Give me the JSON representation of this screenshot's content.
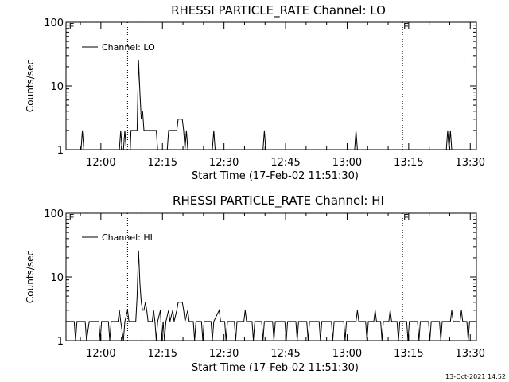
{
  "footer_timestamp": "13-Oct-2021 14:52",
  "chart_data": [
    {
      "type": "line",
      "title": "RHESSI PARTICLE_RATE Channel: LO",
      "xlabel": "Start Time (17-Feb-02 11:51:30)",
      "ylabel": "Counts/sec",
      "x_ticks": [
        "12:00",
        "12:15",
        "12:30",
        "12:45",
        "13:00",
        "13:15",
        "13:30"
      ],
      "y_ticks": [
        "1",
        "10",
        "100"
      ],
      "y_scale": "log",
      "ylim": [
        1,
        100
      ],
      "xlim": [
        "11:51:30",
        "13:31:30"
      ],
      "grid": false,
      "legend_position": "top-left",
      "legend_label": "Channel: LO",
      "vlines": [
        "12:06:30",
        "13:13:30",
        "13:28:30"
      ],
      "e_markers": [
        "11:52:00",
        "13:13:30"
      ],
      "e_label": "E",
      "series": [
        {
          "name": "Channel: LO",
          "points": [
            [
              "11:51:30",
              1
            ],
            [
              "11:55:10",
              1
            ],
            [
              "11:55:30",
              2
            ],
            [
              "11:55:50",
              1
            ],
            [
              "12:04:30",
              1
            ],
            [
              "12:04:50",
              2
            ],
            [
              "12:05:10",
              1
            ],
            [
              "12:05:30",
              1
            ],
            [
              "12:05:50",
              2
            ],
            [
              "12:06:10",
              1
            ],
            [
              "12:07:10",
              1
            ],
            [
              "12:07:20",
              2
            ],
            [
              "12:08:50",
              2
            ],
            [
              "12:09:10",
              25
            ],
            [
              "12:09:30",
              8
            ],
            [
              "12:09:50",
              3
            ],
            [
              "12:10:10",
              4
            ],
            [
              "12:10:30",
              2
            ],
            [
              "12:13:30",
              2
            ],
            [
              "12:13:50",
              1
            ],
            [
              "12:16:10",
              1
            ],
            [
              "12:16:30",
              2
            ],
            [
              "12:18:30",
              2
            ],
            [
              "12:18:50",
              3
            ],
            [
              "12:19:50",
              3
            ],
            [
              "12:20:10",
              2
            ],
            [
              "12:20:30",
              1
            ],
            [
              "12:20:50",
              2
            ],
            [
              "12:21:10",
              1
            ],
            [
              "12:27:10",
              1
            ],
            [
              "12:27:30",
              2
            ],
            [
              "12:27:50",
              1
            ],
            [
              "12:39:30",
              1
            ],
            [
              "12:39:50",
              2
            ],
            [
              "12:40:10",
              1
            ],
            [
              "13:01:50",
              1
            ],
            [
              "13:02:10",
              2
            ],
            [
              "13:02:30",
              1
            ],
            [
              "13:24:10",
              1
            ],
            [
              "13:24:30",
              2
            ],
            [
              "13:24:50",
              1
            ],
            [
              "13:25:10",
              2
            ],
            [
              "13:25:30",
              1
            ],
            [
              "13:31:30",
              1
            ]
          ]
        }
      ]
    },
    {
      "type": "line",
      "title": "RHESSI PARTICLE_RATE Channel: HI",
      "xlabel": "Start Time (17-Feb-02 11:51:30)",
      "ylabel": "Counts/sec",
      "x_ticks": [
        "12:00",
        "12:15",
        "12:30",
        "12:45",
        "13:00",
        "13:15",
        "13:30"
      ],
      "y_ticks": [
        "1",
        "10",
        "100"
      ],
      "y_scale": "log",
      "ylim": [
        1,
        100
      ],
      "xlim": [
        "11:51:30",
        "13:31:30"
      ],
      "grid": false,
      "legend_position": "top-left",
      "legend_label": "Channel: HI",
      "vlines": [
        "12:06:30",
        "13:13:30",
        "13:28:30"
      ],
      "e_markers": [
        "11:52:00",
        "13:13:30"
      ],
      "e_label": "E",
      "series": [
        {
          "name": "Channel: HI",
          "points": [
            [
              "11:51:30",
              2
            ],
            [
              "11:53:30",
              2
            ],
            [
              "11:53:50",
              1
            ],
            [
              "11:54:10",
              2
            ],
            [
              "11:56:10",
              2
            ],
            [
              "11:56:30",
              1
            ],
            [
              "11:57:10",
              2
            ],
            [
              "11:59:30",
              2
            ],
            [
              "11:59:50",
              1
            ],
            [
              "12:00:10",
              2
            ],
            [
              "12:01:50",
              2
            ],
            [
              "12:02:10",
              1
            ],
            [
              "12:02:30",
              2
            ],
            [
              "12:04:10",
              2
            ],
            [
              "12:04:30",
              3
            ],
            [
              "12:04:50",
              2
            ],
            [
              "12:05:30",
              1
            ],
            [
              "12:05:50",
              2
            ],
            [
              "12:06:30",
              3
            ],
            [
              "12:06:50",
              2
            ],
            [
              "12:07:30",
              2
            ],
            [
              "12:08:30",
              2
            ],
            [
              "12:08:50",
              5
            ],
            [
              "12:09:10",
              26
            ],
            [
              "12:09:30",
              8
            ],
            [
              "12:09:50",
              4
            ],
            [
              "12:10:10",
              3
            ],
            [
              "12:10:30",
              3
            ],
            [
              "12:10:50",
              4
            ],
            [
              "12:11:10",
              3
            ],
            [
              "12:11:30",
              2
            ],
            [
              "12:12:30",
              2
            ],
            [
              "12:12:50",
              3
            ],
            [
              "12:13:10",
              2
            ],
            [
              "12:13:30",
              1
            ],
            [
              "12:13:50",
              2
            ],
            [
              "12:14:30",
              3
            ],
            [
              "12:14:50",
              1
            ],
            [
              "12:15:10",
              2
            ],
            [
              "12:15:30",
              1
            ],
            [
              "12:15:50",
              2
            ],
            [
              "12:16:30",
              3
            ],
            [
              "12:16:50",
              2
            ],
            [
              "12:17:30",
              3
            ],
            [
              "12:17:50",
              2
            ],
            [
              "12:18:30",
              3
            ],
            [
              "12:18:50",
              4
            ],
            [
              "12:19:50",
              4
            ],
            [
              "12:20:10",
              3
            ],
            [
              "12:20:30",
              2
            ],
            [
              "12:21:10",
              3
            ],
            [
              "12:21:30",
              2
            ],
            [
              "12:22:30",
              2
            ],
            [
              "12:22:50",
              1
            ],
            [
              "12:23:10",
              2
            ],
            [
              "12:24:30",
              2
            ],
            [
              "12:24:50",
              1
            ],
            [
              "12:25:10",
              2
            ],
            [
              "12:26:50",
              2
            ],
            [
              "12:27:10",
              1
            ],
            [
              "12:27:30",
              2
            ],
            [
              "12:28:50",
              3
            ],
            [
              "12:29:10",
              2
            ],
            [
              "12:30:10",
              2
            ],
            [
              "12:30:30",
              1
            ],
            [
              "12:30:50",
              2
            ],
            [
              "12:32:30",
              2
            ],
            [
              "12:32:50",
              1
            ],
            [
              "12:33:10",
              2
            ],
            [
              "12:34:50",
              2
            ],
            [
              "12:35:10",
              3
            ],
            [
              "12:35:30",
              2
            ],
            [
              "12:36:50",
              2
            ],
            [
              "12:37:10",
              1
            ],
            [
              "12:37:30",
              2
            ],
            [
              "12:39:10",
              2
            ],
            [
              "12:39:30",
              1
            ],
            [
              "12:39:50",
              2
            ],
            [
              "12:41:50",
              2
            ],
            [
              "12:42:10",
              1
            ],
            [
              "12:42:30",
              2
            ],
            [
              "12:44:50",
              2
            ],
            [
              "12:45:10",
              1
            ],
            [
              "12:45:30",
              2
            ],
            [
              "12:47:30",
              2
            ],
            [
              "12:47:50",
              1
            ],
            [
              "12:48:10",
              2
            ],
            [
              "12:50:10",
              2
            ],
            [
              "12:50:30",
              1
            ],
            [
              "12:50:50",
              2
            ],
            [
              "12:53:10",
              2
            ],
            [
              "12:53:30",
              1
            ],
            [
              "12:53:50",
              2
            ],
            [
              "12:56:10",
              2
            ],
            [
              "12:56:30",
              1
            ],
            [
              "12:56:50",
              2
            ],
            [
              "12:59:10",
              2
            ],
            [
              "12:59:30",
              1
            ],
            [
              "12:59:50",
              2
            ],
            [
              "13:02:10",
              2
            ],
            [
              "13:02:30",
              3
            ],
            [
              "13:02:50",
              2
            ],
            [
              "13:04:30",
              2
            ],
            [
              "13:04:50",
              1
            ],
            [
              "13:05:10",
              2
            ],
            [
              "13:06:30",
              2
            ],
            [
              "13:06:50",
              3
            ],
            [
              "13:07:10",
              2
            ],
            [
              "13:08:10",
              2
            ],
            [
              "13:08:30",
              1
            ],
            [
              "13:08:50",
              2
            ],
            [
              "13:10:10",
              2
            ],
            [
              "13:10:30",
              3
            ],
            [
              "13:10:50",
              2
            ],
            [
              "13:12:10",
              2
            ],
            [
              "13:12:30",
              1
            ],
            [
              "13:12:50",
              2
            ],
            [
              "13:14:30",
              2
            ],
            [
              "13:14:50",
              1
            ],
            [
              "13:15:10",
              2
            ],
            [
              "13:17:10",
              2
            ],
            [
              "13:17:30",
              1
            ],
            [
              "13:17:50",
              2
            ],
            [
              "13:19:50",
              2
            ],
            [
              "13:20:10",
              1
            ],
            [
              "13:20:30",
              2
            ],
            [
              "13:22:30",
              2
            ],
            [
              "13:22:50",
              1
            ],
            [
              "13:23:10",
              2
            ],
            [
              "13:25:10",
              2
            ],
            [
              "13:25:30",
              3
            ],
            [
              "13:25:50",
              2
            ],
            [
              "13:27:30",
              2
            ],
            [
              "13:27:50",
              3
            ],
            [
              "13:28:10",
              2
            ],
            [
              "13:29:10",
              2
            ],
            [
              "13:29:30",
              1
            ],
            [
              "13:29:50",
              2
            ],
            [
              "13:31:30",
              2
            ]
          ]
        }
      ]
    }
  ]
}
